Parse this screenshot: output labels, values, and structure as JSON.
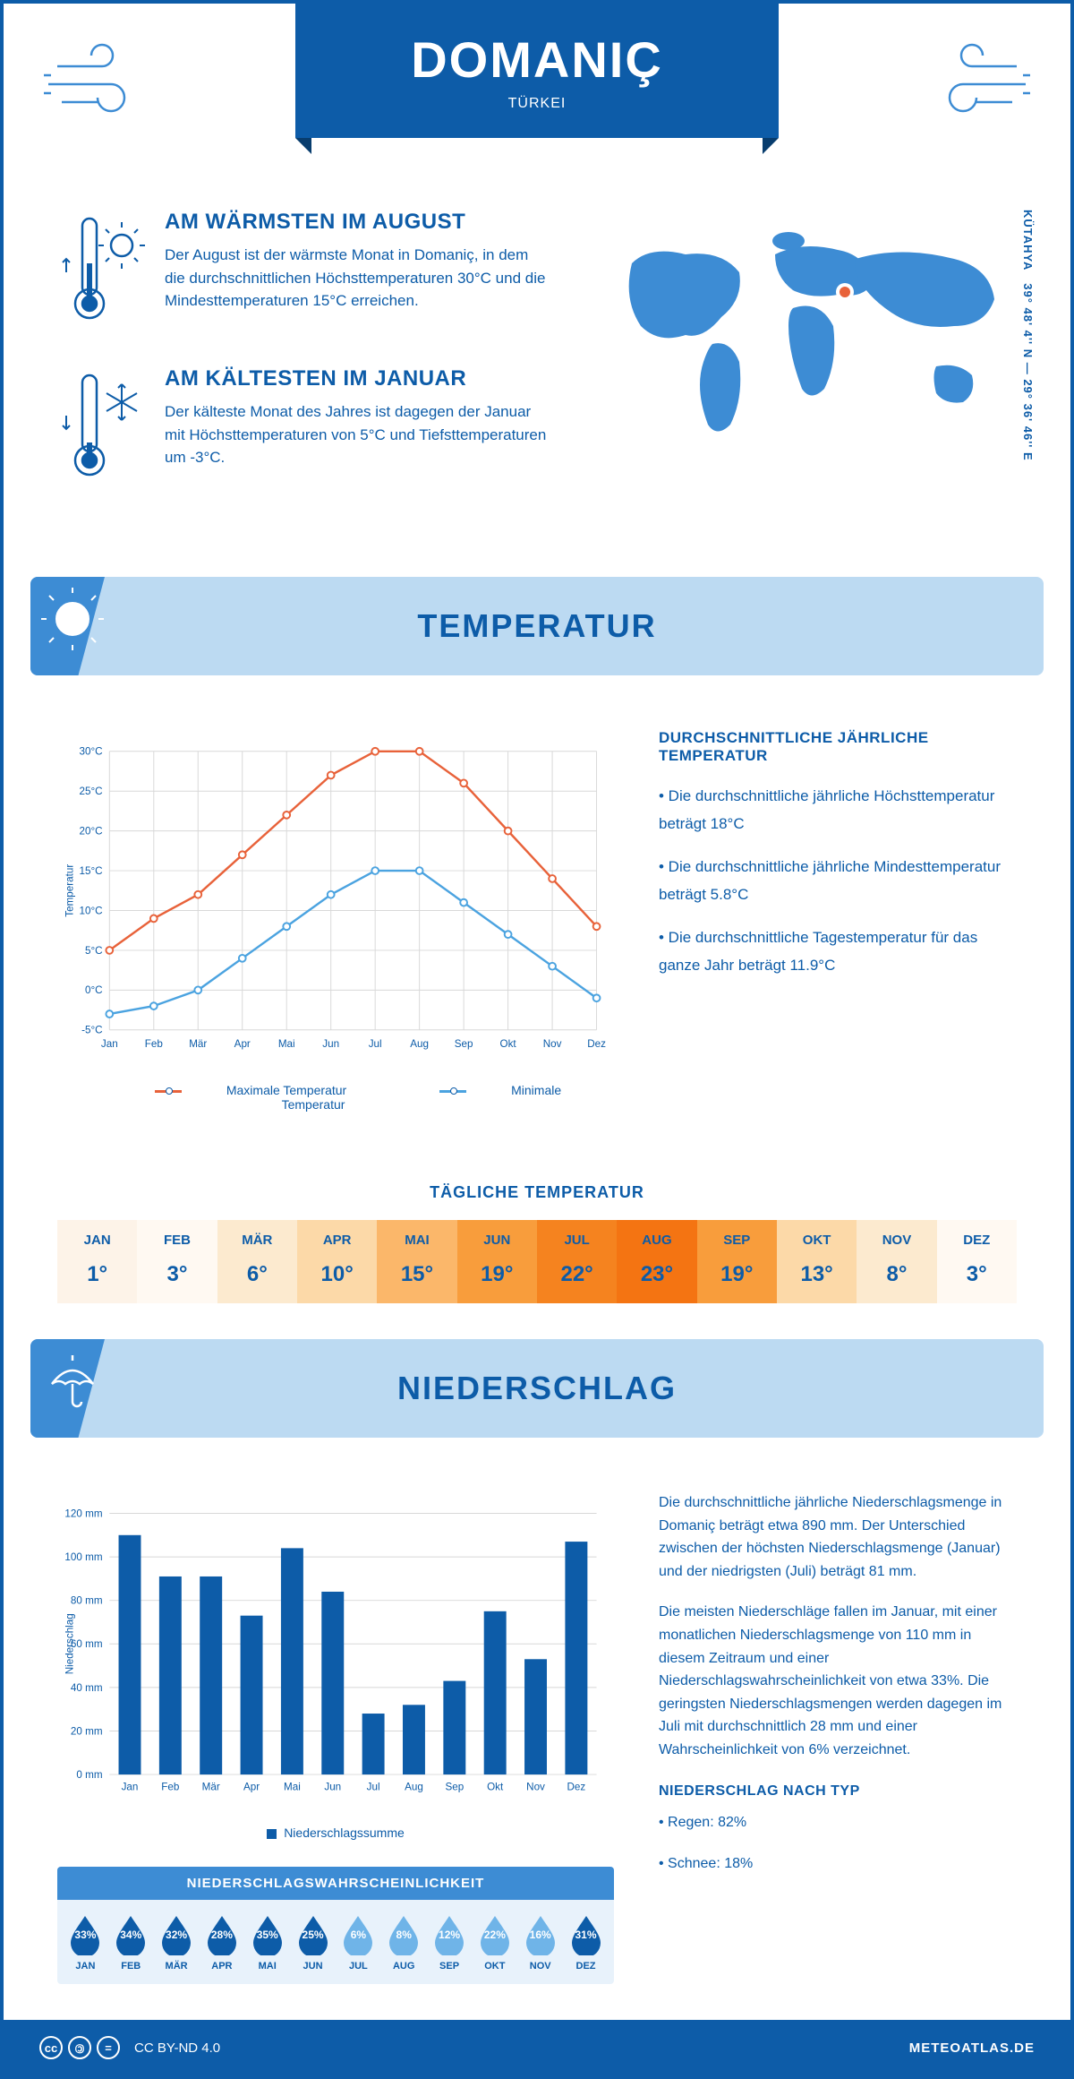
{
  "header": {
    "title": "DOMANIÇ",
    "subtitle": "TÜRKEI",
    "coords": "39° 48' 4'' N — 29° 36' 46'' E",
    "region": "KÜTAHYA"
  },
  "warmest": {
    "title": "AM WÄRMSTEN IM AUGUST",
    "text": "Der August ist der wärmste Monat in Domaniç, in dem die durchschnittlichen Höchsttemperaturen 30°C und die Mindesttemperaturen 15°C erreichen."
  },
  "coldest": {
    "title": "AM KÄLTESTEN IM JANUAR",
    "text": "Der kälteste Monat des Jahres ist dagegen der Januar mit Höchsttemperaturen von 5°C und Tiefsttemperaturen um -3°C."
  },
  "temp_section": {
    "title": "TEMPERATUR",
    "facts_title": "DURCHSCHNITTLICHE JÄHRLICHE TEMPERATUR",
    "fact1": "• Die durchschnittliche jährliche Höchsttemperatur beträgt 18°C",
    "fact2": "• Die durchschnittliche jährliche Mindesttemperatur beträgt 5.8°C",
    "fact3": "• Die durchschnittliche Tagestemperatur für das ganze Jahr beträgt 11.9°C",
    "legend_max": "Maximale Temperatur",
    "legend_min": "Minimale Temperatur",
    "chart": {
      "months": [
        "Jan",
        "Feb",
        "Mär",
        "Apr",
        "Mai",
        "Jun",
        "Jul",
        "Aug",
        "Sep",
        "Okt",
        "Nov",
        "Dez"
      ],
      "max": [
        5,
        9,
        12,
        17,
        22,
        27,
        30,
        30,
        26,
        20,
        14,
        8
      ],
      "min": [
        -3,
        -2,
        0,
        4,
        8,
        12,
        15,
        15,
        11,
        7,
        3,
        -1
      ],
      "ylabel": "Temperatur",
      "ymin": -5,
      "ymax": 30,
      "ystep": 5,
      "max_color": "#e8623a",
      "min_color": "#4ba3e0",
      "grid_color": "#d8d8d8",
      "axis_color": "#666"
    }
  },
  "daily": {
    "title": "TÄGLICHE TEMPERATUR",
    "months": [
      "JAN",
      "FEB",
      "MÄR",
      "APR",
      "MAI",
      "JUN",
      "JUL",
      "AUG",
      "SEP",
      "OKT",
      "NOV",
      "DEZ"
    ],
    "values": [
      "1°",
      "3°",
      "6°",
      "10°",
      "15°",
      "19°",
      "22°",
      "23°",
      "19°",
      "13°",
      "8°",
      "3°"
    ],
    "colors": [
      "#fdf3e8",
      "#fff9f2",
      "#fceacf",
      "#fcd9a8",
      "#fbb76a",
      "#f89d3c",
      "#f5831f",
      "#f47412",
      "#f89d3c",
      "#fcd9a8",
      "#fceacf",
      "#fff9f2"
    ]
  },
  "precip_section": {
    "title": "NIEDERSCHLAG",
    "text1": "Die durchschnittliche jährliche Niederschlagsmenge in Domaniç beträgt etwa 890 mm. Der Unterschied zwischen der höchsten Niederschlagsmenge (Januar) und der niedrigsten (Juli) beträgt 81 mm.",
    "text2": "Die meisten Niederschläge fallen im Januar, mit einer monatlichen Niederschlagsmenge von 110 mm in diesem Zeitraum und einer Niederschlagswahrscheinlichkeit von etwa 33%. Die geringsten Niederschlagsmengen werden dagegen im Juli mit durchschnittlich 28 mm und einer Wahrscheinlichkeit von 6% verzeichnet.",
    "type_title": "NIEDERSCHLAG NACH TYP",
    "type1": "• Regen: 82%",
    "type2": "• Schnee: 18%",
    "legend": "Niederschlagssumme",
    "chart": {
      "months": [
        "Jan",
        "Feb",
        "Mär",
        "Apr",
        "Mai",
        "Jun",
        "Jul",
        "Aug",
        "Sep",
        "Okt",
        "Nov",
        "Dez"
      ],
      "values": [
        110,
        91,
        91,
        73,
        104,
        84,
        28,
        32,
        43,
        75,
        53,
        107
      ],
      "ylabel": "Niederschlag",
      "ymax": 120,
      "ystep": 20,
      "bar_color": "#0d5ca8",
      "grid_color": "#d8d8d8"
    }
  },
  "probability": {
    "title": "NIEDERSCHLAGSWAHRSCHEINLICHKEIT",
    "months": [
      "JAN",
      "FEB",
      "MÄR",
      "APR",
      "MAI",
      "JUN",
      "JUL",
      "AUG",
      "SEP",
      "OKT",
      "NOV",
      "DEZ"
    ],
    "values": [
      "33%",
      "34%",
      "32%",
      "28%",
      "35%",
      "25%",
      "6%",
      "8%",
      "12%",
      "22%",
      "16%",
      "31%"
    ],
    "drop_dark": "#0d5ca8",
    "drop_light": "#6fb4e8"
  },
  "footer": {
    "license": "CC BY-ND 4.0",
    "site": "METEOATLAS.DE"
  }
}
